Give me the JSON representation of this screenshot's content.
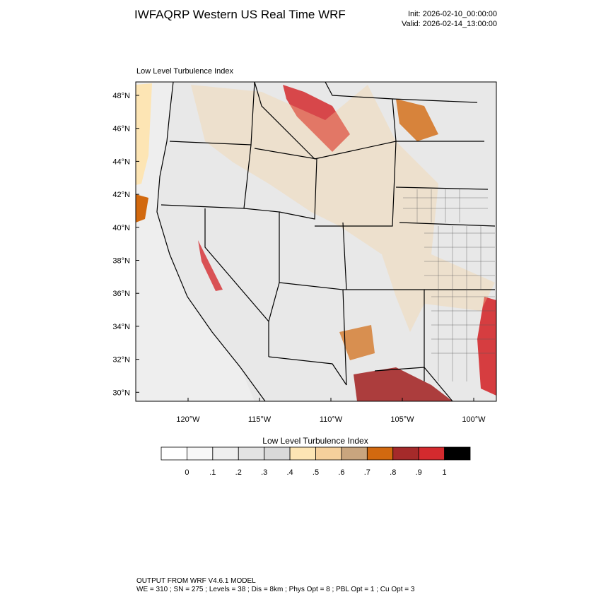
{
  "header": {
    "title": "IWFAQRP Western US Real Time WRF",
    "init": "Init: 2026-02-10_00:00:00",
    "valid": "Valid: 2026-02-14_13:00:00"
  },
  "map": {
    "subtitle": "Low Level Turbulence Index",
    "lat_labels": [
      "48°N",
      "46°N",
      "44°N",
      "42°N",
      "40°N",
      "38°N",
      "36°N",
      "34°N",
      "32°N",
      "30°N"
    ],
    "lon_labels": [
      "120°W",
      "115°W",
      "110°W",
      "105°W",
      "100°W"
    ]
  },
  "colorbar": {
    "title": "Low Level Turbulence Index",
    "colors": [
      "#ffffff",
      "#f8f8f8",
      "#efefef",
      "#e3e3e3",
      "#d9d9d9",
      "#fde5b4",
      "#f5d09c",
      "#c9a57e",
      "#d2690f",
      "#a52a2a",
      "#d42a2e",
      "#000000"
    ],
    "labels": [
      "0",
      ".1",
      ".2",
      ".3",
      ".4",
      ".5",
      ".6",
      ".7",
      ".8",
      ".9",
      "1"
    ]
  },
  "footer": {
    "line1": "OUTPUT FROM WRF V4.6.1 MODEL",
    "line2": "WE = 310 ; SN = 275 ; Levels = 38 ; Dis = 8km ; Phys Opt = 8 ; PBL Opt = 1 ; Cu Opt = 3"
  }
}
